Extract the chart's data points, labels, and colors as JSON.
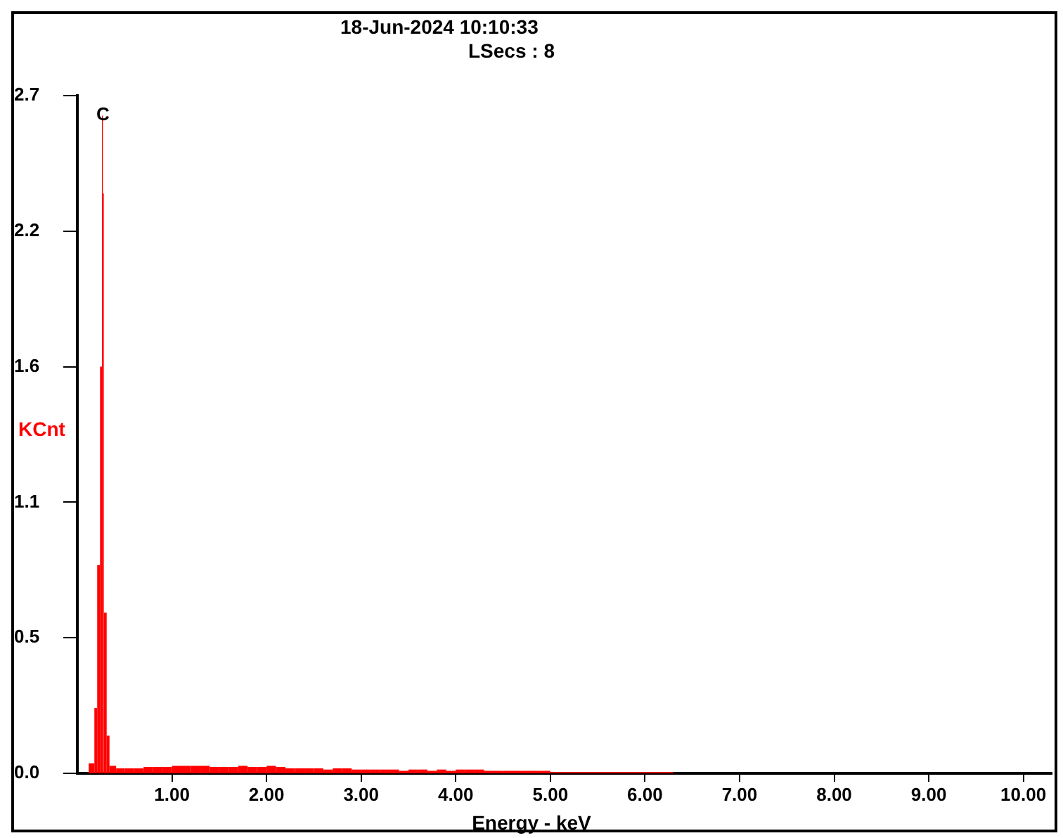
{
  "chart_data": {
    "type": "histogram",
    "title": "18-Jun-2024 10:10:33",
    "subtitle": "LSecs : 8",
    "xlabel": "Energy - keV",
    "ylabel": "KCnt",
    "annotations": [
      {
        "text": "C",
        "x": 0.27,
        "y": 2.62
      }
    ],
    "bins": [
      0.12,
      0.18,
      0.21,
      0.24,
      0.26,
      0.27,
      0.28,
      0.31,
      0.34,
      0.41,
      0.5,
      0.6,
      0.7,
      0.8,
      0.9,
      1.0,
      1.1,
      1.2,
      1.3,
      1.4,
      1.5,
      1.6,
      1.7,
      1.8,
      1.9,
      2.0,
      2.1,
      2.2,
      2.3,
      2.4,
      2.5,
      2.6,
      2.7,
      2.8,
      2.9,
      3.0,
      3.1,
      3.2,
      3.3,
      3.4,
      3.5,
      3.6,
      3.7,
      3.8,
      3.9,
      4.0,
      4.1,
      4.2,
      4.3,
      4.4,
      4.5,
      4.6,
      4.7,
      4.8,
      4.9,
      5.0,
      5.5,
      6.3
    ],
    "values": [
      0.04,
      0.26,
      0.83,
      1.62,
      2.62,
      2.31,
      0.64,
      0.15,
      0.03,
      0.02,
      0.02,
      0.02,
      0.025,
      0.025,
      0.025,
      0.03,
      0.03,
      0.03,
      0.03,
      0.025,
      0.025,
      0.025,
      0.03,
      0.025,
      0.025,
      0.03,
      0.025,
      0.02,
      0.02,
      0.02,
      0.02,
      0.015,
      0.02,
      0.02,
      0.015,
      0.015,
      0.015,
      0.015,
      0.015,
      0.01,
      0.015,
      0.015,
      0.01,
      0.015,
      0.01,
      0.015,
      0.015,
      0.015,
      0.01,
      0.01,
      0.01,
      0.01,
      0.01,
      0.01,
      0.01,
      0.005,
      0.005
    ],
    "color": "#ff0000",
    "xlim": [
      0,
      10.3
    ],
    "ylim": [
      0,
      2.7
    ],
    "xticks": [
      {
        "value": 1,
        "label": "1.00"
      },
      {
        "value": 2,
        "label": "2.00"
      },
      {
        "value": 3,
        "label": "3.00"
      },
      {
        "value": 4,
        "label": "4.00"
      },
      {
        "value": 5,
        "label": "5.00"
      },
      {
        "value": 6,
        "label": "6.00"
      },
      {
        "value": 7,
        "label": "7.00"
      },
      {
        "value": 8,
        "label": "8.00"
      },
      {
        "value": 9,
        "label": "9.00"
      },
      {
        "value": 10,
        "label": "10.00"
      }
    ],
    "yticks": [
      {
        "value": 0,
        "label": "0.0"
      },
      {
        "value": 0.54,
        "label": "0.5"
      },
      {
        "value": 1.08,
        "label": "1.1"
      },
      {
        "value": 1.62,
        "label": "1.6"
      },
      {
        "value": 2.16,
        "label": "2.2"
      },
      {
        "value": 2.7,
        "label": "2.7"
      }
    ],
    "grid": false,
    "legend": false
  }
}
